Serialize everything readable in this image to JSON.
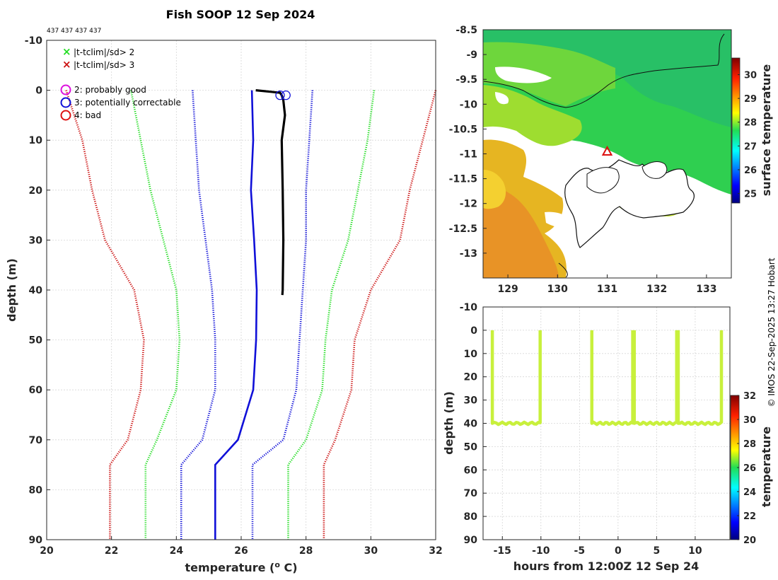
{
  "title": "Fish SOOP 12 Sep 2024",
  "probe_ids": "437 437 437 437",
  "credit": "© IMOS 22-Sep-2025 13:27 Hobart",
  "colors": {
    "black": "#000000",
    "blue": "#1010d8",
    "green": "#22dd22",
    "red": "#cc1111",
    "magenta": "#dd11dd",
    "cast": "#c8f03c",
    "land": "#ffffff"
  },
  "legend": {
    "cross_items": [
      {
        "symbol": "×",
        "label": "|t-tclim|/sd> 2",
        "color": "#22dd22"
      },
      {
        "symbol": "×",
        "label": "|t-tclim|/sd> 3",
        "color": "#cc1111"
      }
    ],
    "circle_items": [
      {
        "label": "2: probably good",
        "color": "#dd11dd"
      },
      {
        "label": "3: potentially correctable",
        "color": "#1010d8"
      },
      {
        "label": "4: bad",
        "color": "#dd1111"
      }
    ]
  },
  "chart_data": [
    {
      "type": "line",
      "name": "profile",
      "xlabel": "temperature (",
      "xlabel_sup": "o",
      "xlabel_tail": " C)",
      "ylabel": "depth (m)",
      "xlim": [
        20,
        32
      ],
      "ylim": [
        -10,
        90
      ],
      "xticks": [
        20,
        22,
        24,
        26,
        28,
        30,
        32
      ],
      "yticks": [
        -10,
        0,
        10,
        20,
        30,
        40,
        50,
        60,
        70,
        80,
        90
      ],
      "grid": true,
      "series": [
        {
          "name": "clim_minus_3sd",
          "color": "#cc1111",
          "style": "dotted",
          "depth": [
            0,
            10,
            20,
            30,
            40,
            50,
            60,
            70,
            75,
            90
          ],
          "temp": [
            20.6,
            21.1,
            21.4,
            21.8,
            22.7,
            23.0,
            22.9,
            22.5,
            21.95,
            21.95
          ]
        },
        {
          "name": "clim_minus_2sd",
          "color": "#22dd22",
          "style": "dotted",
          "depth": [
            0,
            10,
            20,
            30,
            40,
            50,
            60,
            70,
            75,
            90
          ],
          "temp": [
            22.6,
            22.9,
            23.2,
            23.6,
            24.0,
            24.1,
            24.0,
            23.4,
            23.05,
            23.05
          ]
        },
        {
          "name": "clim_minus_1sd",
          "color": "#1010d8",
          "style": "dotted",
          "depth": [
            0,
            10,
            20,
            30,
            40,
            50,
            60,
            70,
            75,
            90
          ],
          "temp": [
            24.5,
            24.6,
            24.7,
            24.9,
            25.1,
            25.2,
            25.2,
            24.8,
            24.15,
            24.15
          ]
        },
        {
          "name": "climatology",
          "color": "#1010d8",
          "style": "solid",
          "depth": [
            0,
            10,
            20,
            30,
            40,
            50,
            60,
            70,
            75,
            90
          ],
          "temp": [
            26.33,
            26.37,
            26.3,
            26.4,
            26.48,
            26.46,
            26.37,
            25.9,
            25.2,
            25.2
          ]
        },
        {
          "name": "clim_plus_1sd",
          "color": "#1010d8",
          "style": "dotted",
          "depth": [
            0,
            10,
            20,
            30,
            40,
            50,
            60,
            70,
            75,
            90
          ],
          "temp": [
            28.2,
            28.1,
            28.0,
            28.0,
            27.9,
            27.8,
            27.7,
            27.3,
            26.35,
            26.35
          ]
        },
        {
          "name": "clim_plus_2sd",
          "color": "#22dd22",
          "style": "dotted",
          "depth": [
            0,
            10,
            20,
            30,
            40,
            50,
            60,
            70,
            75,
            90
          ],
          "temp": [
            30.1,
            29.9,
            29.6,
            29.3,
            28.8,
            28.6,
            28.5,
            28.0,
            27.45,
            27.45
          ]
        },
        {
          "name": "clim_plus_3sd",
          "color": "#cc1111",
          "style": "dotted",
          "depth": [
            0,
            10,
            20,
            30,
            40,
            50,
            60,
            70,
            75,
            90
          ],
          "temp": [
            32.0,
            31.6,
            31.2,
            30.9,
            30.0,
            29.5,
            29.4,
            28.9,
            28.55,
            28.55
          ]
        },
        {
          "name": "observed",
          "color": "#000000",
          "style": "solid",
          "depth": [
            0,
            0.5,
            1,
            2,
            5,
            10,
            20,
            30,
            40,
            41
          ],
          "temp": [
            26.45,
            27.2,
            27.25,
            27.3,
            27.35,
            27.25,
            27.28,
            27.3,
            27.28,
            27.27
          ]
        }
      ],
      "flag_circles": [
        {
          "flag": 3,
          "temp": 27.2,
          "depth": 1,
          "color": "#1010d8"
        },
        {
          "flag": 3,
          "temp": 27.38,
          "depth": 1,
          "color": "#1010d8"
        }
      ]
    },
    {
      "type": "heatmap",
      "name": "sst_map",
      "xlim": [
        128.5,
        133.5
      ],
      "ylim": [
        -13.5,
        -8.5
      ],
      "xticks": [
        129,
        130,
        131,
        132,
        133
      ],
      "yticks": [
        -8.5,
        -9,
        -9.5,
        -10,
        -10.5,
        -11,
        -11.5,
        -12,
        -12.5,
        -13
      ],
      "colorbar": {
        "label": "surface temperature",
        "ticks": [
          25,
          26,
          27,
          28,
          29,
          30
        ],
        "range": [
          24.6,
          30.7
        ]
      },
      "marker": {
        "symbol": "triangle",
        "lon": 131.0,
        "lat": -10.95,
        "color": "#dd1111"
      }
    },
    {
      "type": "scatter",
      "name": "depth_time",
      "xlabel": "hours from 12:00Z 12 Sep 24",
      "ylabel": "depth (m)",
      "xlim": [
        -17.5,
        14.5
      ],
      "ylim": [
        -10,
        90
      ],
      "xticks": [
        -15,
        -10,
        -5,
        0,
        5,
        10
      ],
      "yticks": [
        -10,
        0,
        10,
        20,
        30,
        40,
        50,
        60,
        70,
        80,
        90
      ],
      "grid": true,
      "casts": [
        {
          "start": -16.3,
          "end": -10.1,
          "bottom": 40
        },
        {
          "start": -3.4,
          "end": 1.9,
          "bottom": 40
        },
        {
          "start": 2.1,
          "end": 7.6,
          "bottom": 40
        },
        {
          "start": 7.8,
          "end": 13.4,
          "bottom": 40
        }
      ],
      "colorbar": {
        "label": "temperature",
        "ticks": [
          20,
          22,
          24,
          26,
          28,
          30,
          32
        ],
        "range": [
          20,
          32
        ]
      }
    }
  ]
}
